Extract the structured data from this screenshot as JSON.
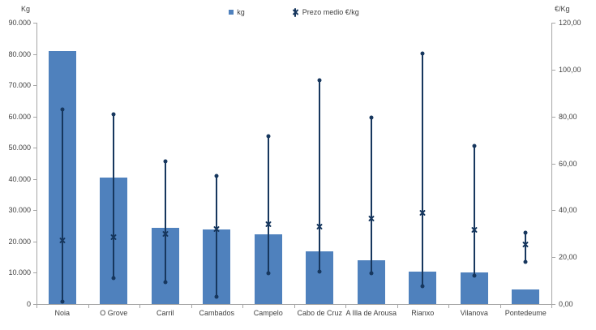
{
  "colors": {
    "bar": "#4f81bd",
    "line": "#17375e",
    "axis": "#a6a6a6",
    "text": "#404040",
    "background": "#ffffff"
  },
  "chart_data": {
    "type": "bar",
    "title": "",
    "grid": false,
    "categories": [
      "Noia",
      "O Grove",
      "Carril",
      "Cambados",
      "Campelo",
      "Cabo de Cruz",
      "A Illa de Arousa",
      "Rianxo",
      "Vilanova",
      "Pontedeume"
    ],
    "series": [
      {
        "name": "kg",
        "type": "bar",
        "axis": "left",
        "values": [
          81000,
          40500,
          24500,
          23800,
          22400,
          16800,
          14000,
          10400,
          10100,
          4700
        ]
      },
      {
        "name": "Prezo medio €/kg",
        "type": "high-low-mean",
        "axis": "right",
        "mean": [
          27,
          28.5,
          30,
          32,
          34,
          33,
          36.5,
          39,
          31.5,
          25.5
        ],
        "high": [
          83,
          81,
          61,
          54.5,
          71.5,
          95.5,
          79.5,
          107,
          67.5,
          30.5
        ],
        "low": [
          1,
          11,
          9.5,
          3,
          13,
          14,
          13,
          7.5,
          12,
          18
        ]
      }
    ],
    "left_axis": {
      "title": "Kg",
      "min": 0,
      "max": 90000,
      "step": 10000,
      "tick_labels": [
        "90.000",
        "80.000",
        "70.000",
        "60.000",
        "50.000",
        "40.000",
        "30.000",
        "20.000",
        "10.000",
        "0"
      ]
    },
    "right_axis": {
      "title": "€/Kg",
      "min": 0,
      "max": 120,
      "step": 20,
      "tick_labels": [
        "120,00",
        "100,00",
        "80,00",
        "60,00",
        "40,00",
        "20,00",
        "0,00"
      ]
    },
    "legend": {
      "position": "top",
      "items": [
        {
          "label": "kg",
          "marker": "square"
        },
        {
          "label": "Prezo medio €/kg",
          "marker": "x"
        }
      ]
    }
  }
}
